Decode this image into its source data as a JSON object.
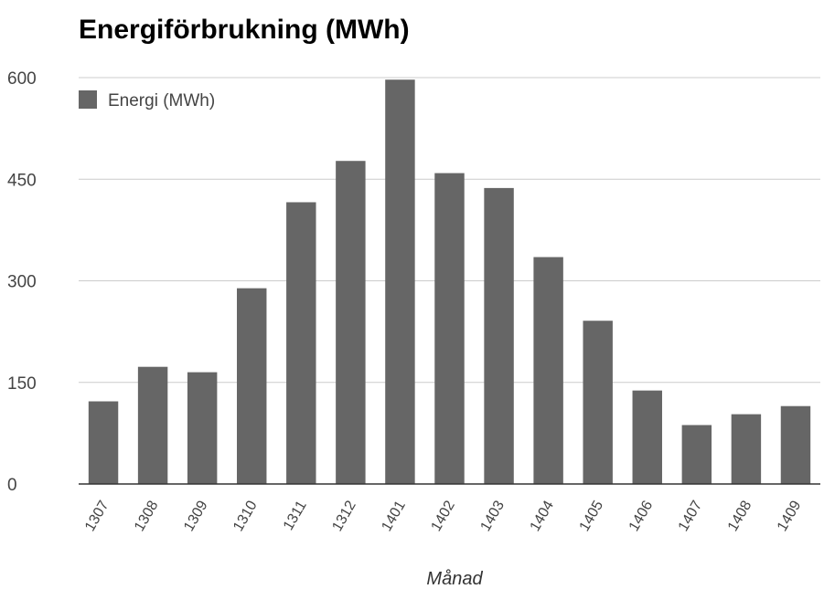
{
  "chart_data": {
    "type": "bar",
    "title": "Energiförbrukning (MWh)",
    "xlabel": "Månad",
    "ylabel": "",
    "categories": [
      "1307",
      "1308",
      "1309",
      "1310",
      "1311",
      "1312",
      "1401",
      "1402",
      "1403",
      "1404",
      "1405",
      "1406",
      "1407",
      "1408",
      "1409"
    ],
    "series": [
      {
        "name": "Energi (MWh)",
        "values": [
          122,
          173,
          165,
          289,
          416,
          477,
          597,
          459,
          437,
          335,
          241,
          138,
          87,
          103,
          115
        ]
      }
    ],
    "ylim": [
      0,
      600
    ],
    "yticks": [
      0,
      150,
      300,
      450,
      600
    ],
    "grid": true,
    "legend_position": "top-left",
    "colors": {
      "bar": "#666666",
      "grid": "#cccccc",
      "baseline": "#333333"
    }
  }
}
